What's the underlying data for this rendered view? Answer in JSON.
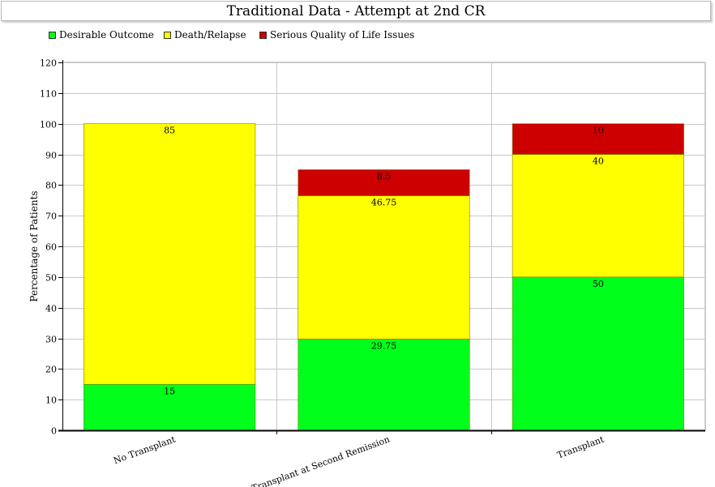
{
  "chart_data": {
    "type": "bar",
    "stacked": true,
    "title": "Traditional Data - Attempt at 2nd CR",
    "ylabel": "Percentage of Patients",
    "xlabel": "",
    "categories": [
      "No Transplant",
      "Transplant at Second Remission",
      "Transplant"
    ],
    "series": [
      {
        "name": "Desirable Outcome",
        "color": "#00ff1a",
        "values": [
          15,
          29.75,
          50
        ],
        "labels": [
          "15",
          "29.75",
          "50"
        ]
      },
      {
        "name": "Death/Relapse",
        "color": "#ffff00",
        "values": [
          85,
          46.75,
          40
        ],
        "labels": [
          "85",
          "46.75",
          "40"
        ]
      },
      {
        "name": "Serious Quality of Life Issues",
        "color": "#cc0000",
        "values": [
          0,
          8.5,
          10
        ],
        "labels": [
          "",
          "8.5",
          "10"
        ]
      }
    ],
    "ylim": [
      0,
      120
    ],
    "yticks": [
      "0",
      "10",
      "20",
      "30",
      "40",
      "50",
      "60",
      "70",
      "80",
      "90",
      "100",
      "110",
      "120"
    ],
    "grid": true,
    "legend_position": "top-left"
  }
}
